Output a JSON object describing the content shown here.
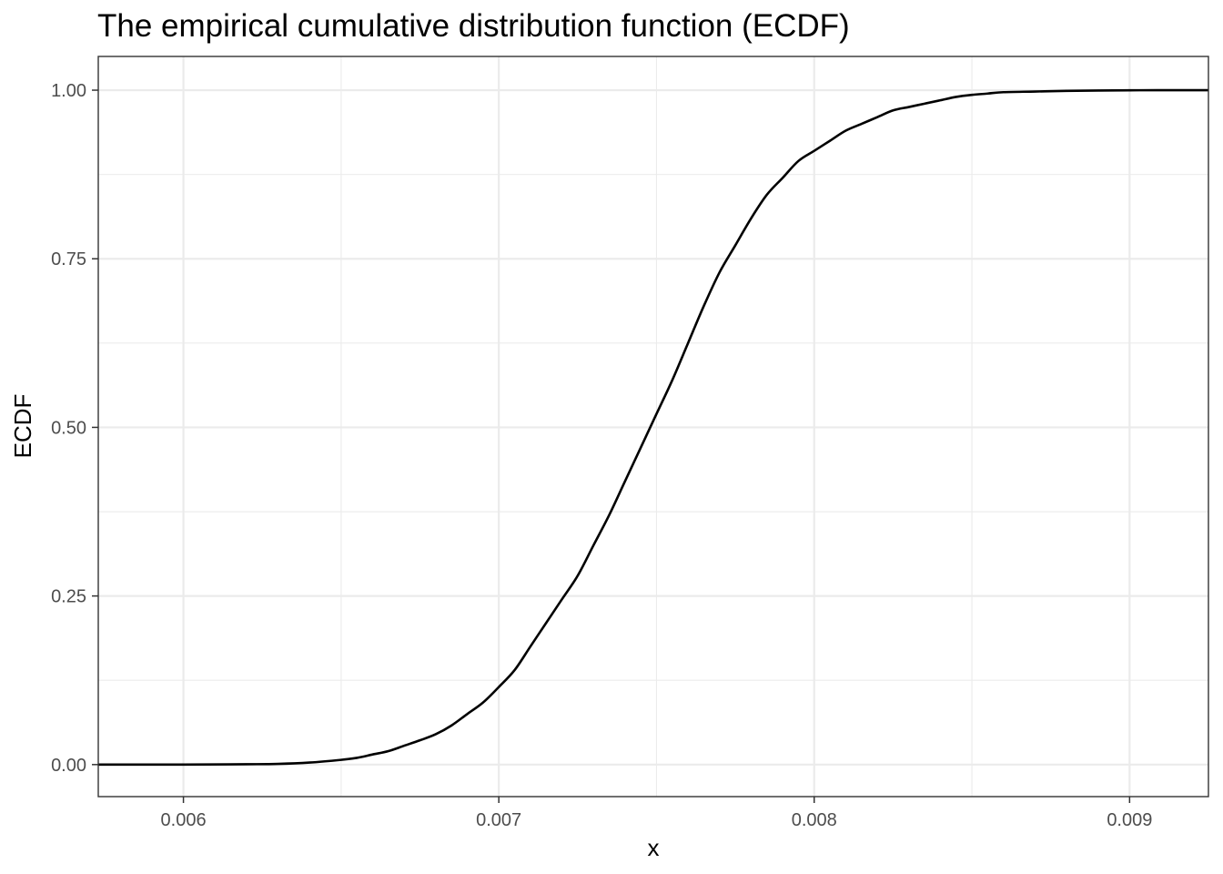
{
  "chart_data": {
    "type": "line",
    "title": "The empirical cumulative distribution function (ECDF)",
    "xlabel": "x",
    "ylabel": "ECDF",
    "xlim": [
      0.00573,
      0.00925
    ],
    "ylim": [
      -0.0475,
      1.05
    ],
    "grid": true,
    "x_ticks": [
      0.006,
      0.007,
      0.008,
      0.009
    ],
    "x_tick_labels": [
      "0.006",
      "0.007",
      "0.008",
      "0.009"
    ],
    "y_ticks": [
      0.0,
      0.25,
      0.5,
      0.75,
      1.0
    ],
    "y_tick_labels": [
      "0.00",
      "0.25",
      "0.50",
      "0.75",
      "1.00"
    ],
    "series": [
      {
        "x": [
          0.00573,
          0.006,
          0.0062,
          0.0063,
          0.0064,
          0.0065,
          0.00655,
          0.0066,
          0.00665,
          0.0067,
          0.00675,
          0.0068,
          0.00685,
          0.0069,
          0.00695,
          0.007,
          0.00705,
          0.0071,
          0.00715,
          0.0072,
          0.00725,
          0.0073,
          0.00735,
          0.0074,
          0.00745,
          0.0075,
          0.00755,
          0.0076,
          0.00765,
          0.0077,
          0.00775,
          0.0078,
          0.00785,
          0.0079,
          0.00795,
          0.008,
          0.00805,
          0.0081,
          0.00815,
          0.0082,
          0.00825,
          0.0083,
          0.00835,
          0.0084,
          0.00845,
          0.0085,
          0.00855,
          0.0086,
          0.0087,
          0.0088,
          0.0089,
          0.009,
          0.0091,
          0.00925
        ],
        "y": [
          0.0,
          0.0,
          0.0005,
          0.001,
          0.003,
          0.007,
          0.01,
          0.015,
          0.02,
          0.028,
          0.036,
          0.045,
          0.058,
          0.075,
          0.092,
          0.115,
          0.14,
          0.175,
          0.21,
          0.245,
          0.28,
          0.325,
          0.37,
          0.42,
          0.47,
          0.52,
          0.57,
          0.625,
          0.68,
          0.73,
          0.77,
          0.81,
          0.845,
          0.87,
          0.895,
          0.91,
          0.925,
          0.94,
          0.95,
          0.96,
          0.97,
          0.975,
          0.98,
          0.985,
          0.99,
          0.993,
          0.995,
          0.997,
          0.998,
          0.999,
          0.9995,
          0.9998,
          1.0,
          1.0
        ]
      }
    ]
  }
}
